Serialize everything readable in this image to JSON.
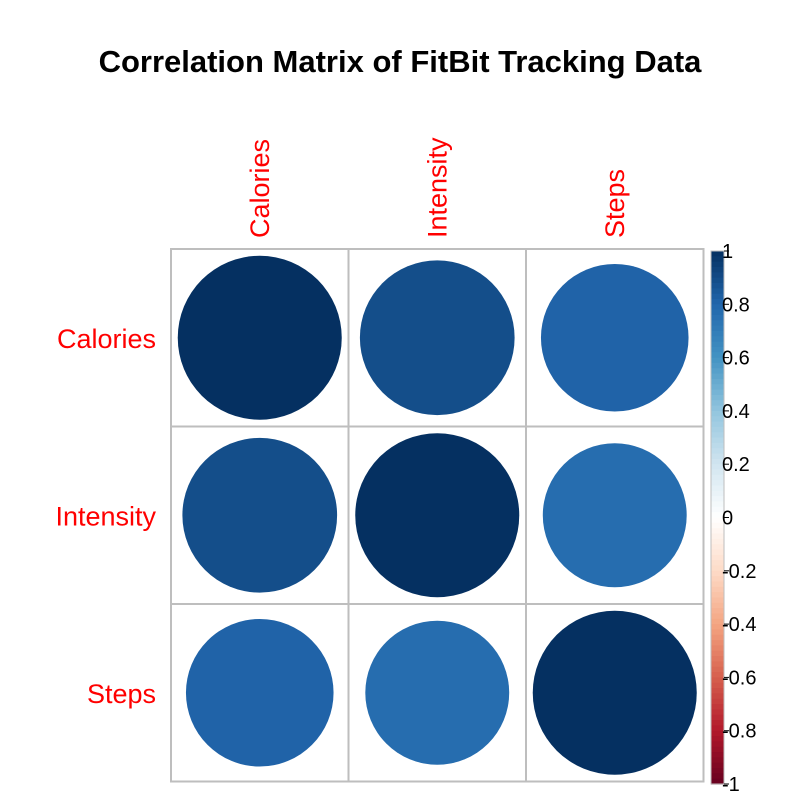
{
  "chart_data": {
    "type": "heatmap",
    "title": "Correlation Matrix of FitBit Tracking Data",
    "variables": [
      "Calories",
      "Intensity",
      "Steps"
    ],
    "matrix": [
      [
        1.0,
        0.89,
        0.81
      ],
      [
        0.89,
        1.0,
        0.77
      ],
      [
        0.81,
        0.77,
        1.0
      ]
    ],
    "colorbar": {
      "range": [
        -1,
        1
      ],
      "tick_labels": [
        "-1",
        "-0.8",
        "-0.6",
        "-0.4",
        "-0.2",
        "0",
        "0.2",
        "0.4",
        "0.6",
        "0.8",
        "1"
      ]
    },
    "label_color": "#FF0000",
    "grid_color": "#BEBEBE"
  }
}
